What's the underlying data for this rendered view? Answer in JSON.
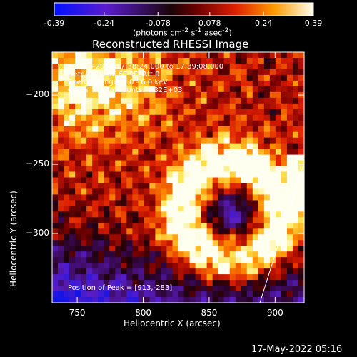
{
  "colorbar": {
    "ticks": [
      "-0.39",
      "-0.24",
      "-0.078",
      "0.078",
      "0.24",
      "0.39"
    ],
    "tick_values": [
      -0.39,
      -0.24,
      -0.078,
      0.078,
      0.24,
      0.39
    ],
    "unit_label_html": "(photons cm<sup>-2</sup> s<sup>-1</sup> asec<sup>-2</sup>)",
    "range": [
      -0.39,
      0.39
    ]
  },
  "chart_data": {
    "type": "heatmap",
    "title": "Reconstructed RHESSI Image",
    "xlabel": "Heliocentric X (arcsec)",
    "ylabel": "Heliocentric Y (arcsec)",
    "xlim": [
      731,
      922
    ],
    "ylim": [
      -350,
      -169
    ],
    "x_ticks": [
      750,
      800,
      850,
      900
    ],
    "y_ticks": [
      -200,
      -250,
      -300
    ],
    "x_tick_labels": [
      "750",
      "800",
      "850",
      "900"
    ],
    "y_tick_labels": [
      "−200",
      "−250",
      "−300"
    ],
    "peak": [
      913,
      -283
    ],
    "annotations": [
      "14-Sep-2014 17:38:24.000 to 17:39:08.000",
      "Detectors: 3F 6F 9F, Att 0",
      "Energy Range: 3.0 - 6.0 keV",
      "Clean     Total counts: 4.32E+03",
      "Position of Peak = [913,-283]"
    ]
  },
  "timestamp": "17-May-2022 05:16"
}
